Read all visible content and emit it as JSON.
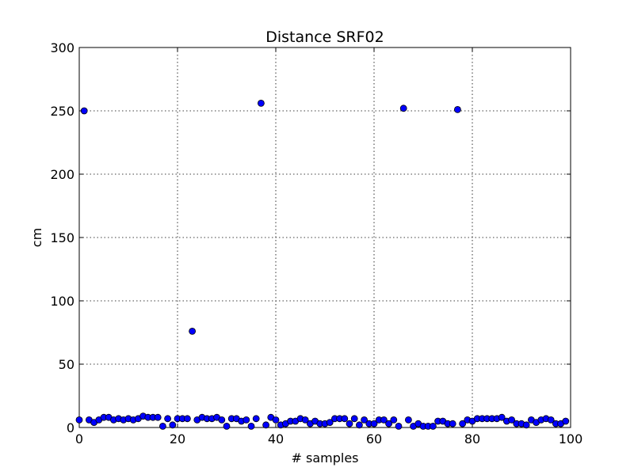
{
  "chart_data": {
    "type": "scatter",
    "title": "Distance SRF02",
    "xlabel": "# samples",
    "ylabel": "cm",
    "xlim": [
      0,
      100
    ],
    "ylim": [
      0,
      300
    ],
    "xticks": [
      0,
      20,
      40,
      60,
      80,
      100
    ],
    "yticks": [
      0,
      50,
      100,
      150,
      200,
      250,
      300
    ],
    "grid": true,
    "marker_color": "#0000ff",
    "series": [
      {
        "x": [
          0,
          1,
          2,
          3,
          4,
          5,
          6,
          7,
          8,
          9,
          10,
          11,
          12,
          13,
          14,
          15,
          16,
          17,
          18,
          19,
          20,
          21,
          22,
          23,
          24,
          25,
          26,
          27,
          28,
          29,
          30,
          31,
          32,
          33,
          34,
          35,
          36,
          37,
          38,
          39,
          40,
          41,
          42,
          43,
          44,
          45,
          46,
          47,
          48,
          49,
          50,
          51,
          52,
          53,
          54,
          55,
          56,
          57,
          58,
          59,
          60,
          61,
          62,
          63,
          64,
          65,
          66,
          67,
          68,
          69,
          70,
          71,
          72,
          73,
          74,
          75,
          76,
          77,
          78,
          79,
          80,
          81,
          82,
          83,
          84,
          85,
          86,
          87,
          88,
          89,
          90,
          91,
          92,
          93,
          94,
          95,
          96,
          97,
          98,
          99
        ],
        "y": [
          6,
          250,
          6,
          4,
          6,
          8,
          8,
          6,
          7,
          6,
          7,
          6,
          7,
          9,
          8,
          8,
          8,
          1,
          7,
          2,
          7,
          7,
          7,
          76,
          6,
          8,
          7,
          7,
          8,
          6,
          1,
          7,
          7,
          5,
          6,
          1,
          7,
          256,
          2,
          8,
          6,
          2,
          3,
          5,
          5,
          7,
          6,
          3,
          5,
          3,
          3,
          4,
          7,
          7,
          7,
          3,
          7,
          2,
          6,
          3,
          3,
          6,
          6,
          3,
          6,
          1,
          252,
          6,
          1,
          3,
          1,
          1,
          1,
          5,
          5,
          3,
          3,
          251,
          3,
          6,
          5,
          7,
          7,
          7,
          7,
          7,
          8,
          5,
          6,
          3,
          3,
          2,
          6,
          4,
          6,
          7,
          6,
          3,
          3,
          5
        ]
      }
    ]
  }
}
